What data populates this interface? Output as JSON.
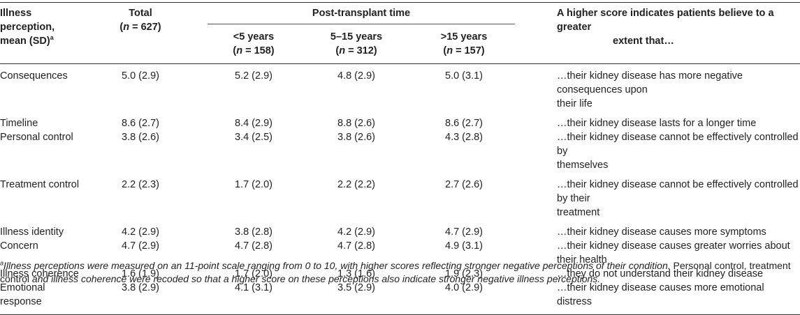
{
  "table": {
    "headers": {
      "col0_line1": "Illness",
      "col0_line2": "perception,",
      "col0_line3": "mean (SD)",
      "col0_sup": "a",
      "col1_line1": "Total",
      "col1_n": "(n = 627)",
      "group_label": "Post-transplant time",
      "col2_line1": "<5 years",
      "col2_n": "(n = 158)",
      "col3_line1": "5–15 years",
      "col3_n": "(n = 312)",
      "col4_line1": ">15 years",
      "col4_n": "(n = 157)",
      "col5_line1": "A higher score indicates patients believe to a greater",
      "col5_line2": "extent that…"
    },
    "rows": [
      {
        "label": "Consequences",
        "total": "5.0 (2.9)",
        "lt5": "5.2 (2.9)",
        "mid": "4.8 (2.9)",
        "gt15": "5.0 (3.1)",
        "desc1": "…their kidney disease has more negative consequences upon",
        "desc2": "their life"
      },
      {
        "label": "Timeline",
        "total": "8.6 (2.7)",
        "lt5": "8.4 (2.9)",
        "mid": "8.8 (2.6)",
        "gt15": "8.6 (2.7)",
        "desc1": "…their kidney disease lasts for a longer time"
      },
      {
        "label": "Personal control",
        "total": "3.8 (2.6)",
        "lt5": "3.4 (2.5)",
        "mid": "3.8 (2.6)",
        "gt15": "4.3 (2.8)",
        "desc1": "…their kidney disease cannot be effectively controlled by",
        "desc2": "themselves"
      },
      {
        "label": "Treatment control",
        "total": "2.2 (2.3)",
        "lt5": "1.7 (2.0)",
        "mid": "2.2 (2.2)",
        "gt15": "2.7 (2.6)",
        "desc1": "…their kidney disease cannot be effectively controlled by their",
        "desc2": "treatment"
      },
      {
        "label": "Illness identity",
        "total": "4.2 (2.9)",
        "lt5": "3.8 (2.8)",
        "mid": "4.2 (2.9)",
        "gt15": "4.7 (2.9)",
        "desc1": "…their kidney disease causes more symptoms"
      },
      {
        "label": "Concern",
        "total": "4.7 (2.9)",
        "lt5": "4.7 (2.8)",
        "mid": "4.7 (2.8)",
        "gt15": "4.9 (3.1)",
        "desc1": "…their kidney disease causes greater worries about their health"
      },
      {
        "label": "Illness coherence",
        "total": "1.6 (1.9)",
        "lt5": "1.7 (2.0)",
        "mid": "1.3 (1.6)",
        "gt15": "1.9 (2.3)",
        "desc1": "…they do not understand their kidney disease"
      },
      {
        "label1": "Emotional",
        "label2": "response",
        "total": "3.8 (2.9)",
        "lt5": "4.1 (3.1)",
        "mid": "3.5 (2.9)",
        "gt15": "4.0 (2.9)",
        "desc1": "…their kidney disease causes more emotional distress"
      }
    ]
  },
  "footnote": {
    "sup": "a",
    "italic_part": "Illness perceptions were measured on an 11-point scale ranging from 0 to 10, with higher scores reflecting stronger negative perceptions of their condition.",
    "plain_part_1": " Personal control, treatment",
    "plain_part_2": "control ",
    "and_word": "and",
    "plain_part_3": " illness coherence were recoded so that a higher score on these perceptions also indicate stronger negative illness perceptions."
  }
}
